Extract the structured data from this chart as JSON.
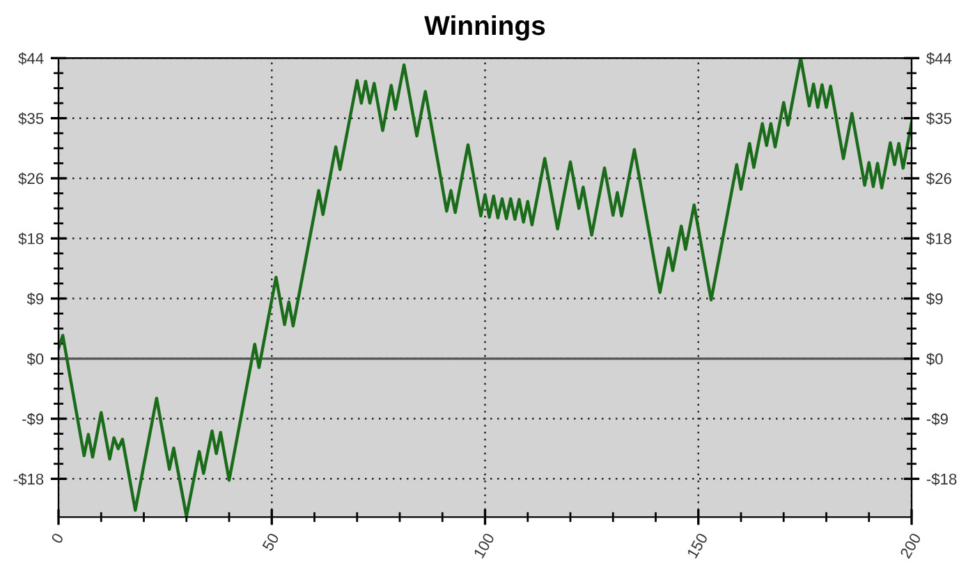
{
  "chart_data": {
    "type": "line",
    "title": "Winnings",
    "x": [
      0,
      1,
      6,
      7,
      8,
      10,
      12,
      13,
      14,
      15,
      18,
      23,
      26,
      27,
      30,
      33,
      34,
      36,
      37,
      38,
      40,
      46,
      47,
      51,
      53,
      54,
      55,
      61,
      62,
      65,
      66,
      70,
      71,
      72,
      73,
      74,
      76,
      78,
      79,
      81,
      84,
      86,
      91,
      92,
      93,
      96,
      99,
      100,
      101,
      102,
      103,
      104,
      105,
      106,
      107,
      108,
      109,
      110,
      111,
      114,
      117,
      120,
      122,
      123,
      125,
      128,
      130,
      131,
      132,
      135,
      141,
      143,
      144,
      146,
      147,
      149,
      153,
      159,
      160,
      162,
      163,
      165,
      166,
      167,
      168,
      170,
      171,
      174,
      176,
      177,
      178,
      179,
      180,
      181,
      184,
      186,
      189,
      190,
      191,
      192,
      193,
      195,
      196,
      197,
      198,
      200
    ],
    "series": [
      {
        "color": "#1a6b1a",
        "values": [
          1.5,
          3.4,
          -14.2,
          -11.1,
          -14.4,
          -7.9,
          -14.7,
          -11.6,
          -13.2,
          -11.8,
          -22.2,
          -5.8,
          -16.2,
          -13.1,
          -23.1,
          -13.6,
          -16.8,
          -10.6,
          -13.9,
          -10.8,
          -17.8,
          2.1,
          -1.3,
          11.9,
          5.0,
          8.3,
          4.8,
          24.6,
          21.1,
          31.0,
          27.7,
          40.7,
          37.4,
          40.6,
          37.4,
          40.3,
          33.4,
          40.0,
          36.5,
          43.0,
          32.6,
          39.1,
          21.6,
          24.6,
          21.4,
          31.3,
          20.9,
          24.0,
          20.7,
          23.8,
          20.6,
          23.4,
          20.5,
          23.4,
          20.4,
          23.3,
          20.0,
          23.0,
          19.6,
          29.3,
          19.0,
          28.8,
          22.0,
          25.1,
          18.1,
          27.9,
          21.0,
          24.3,
          20.9,
          30.6,
          9.7,
          16.2,
          12.9,
          19.4,
          16.0,
          22.5,
          8.6,
          28.4,
          24.8,
          31.5,
          28.0,
          34.4,
          31.2,
          34.4,
          31.0,
          37.5,
          34.2,
          44.0,
          37.0,
          40.2,
          36.8,
          40.1,
          36.8,
          39.9,
          29.3,
          35.9,
          25.4,
          28.7,
          25.2,
          28.6,
          25.0,
          31.6,
          28.4,
          31.5,
          27.9,
          34.6
        ]
      }
    ],
    "xlim": [
      0,
      200
    ],
    "xticks": [
      0,
      50,
      100,
      150,
      200
    ],
    "ylim": [
      -23.2,
      44
    ],
    "yticks": [
      {
        "value": -17.6,
        "label": "-$18"
      },
      {
        "value": -8.8,
        "label": "-$9"
      },
      {
        "value": 0,
        "label": "$0"
      },
      {
        "value": 8.8,
        "label": "$9"
      },
      {
        "value": 17.6,
        "label": "$18"
      },
      {
        "value": 26.4,
        "label": "$26"
      },
      {
        "value": 35.2,
        "label": "$35"
      },
      {
        "value": 44,
        "label": "$44"
      }
    ],
    "y2lim": [
      -23.2,
      44
    ],
    "y2ticks": [
      {
        "value": -17.6,
        "label": "-$18"
      },
      {
        "value": -8.8,
        "label": "-$9"
      },
      {
        "value": 0,
        "label": "$0"
      },
      {
        "value": 8.8,
        "label": "$9"
      },
      {
        "value": 17.6,
        "label": "$18"
      },
      {
        "value": 26.4,
        "label": "$26"
      },
      {
        "value": 35.2,
        "label": "$35"
      },
      {
        "value": 44,
        "label": "$44"
      }
    ],
    "ref_lines": [
      {
        "axis": "y",
        "value": 0,
        "color": "#555555",
        "line_style": "solid"
      }
    ],
    "grid": true,
    "marker": "none",
    "line_style": "solid"
  }
}
